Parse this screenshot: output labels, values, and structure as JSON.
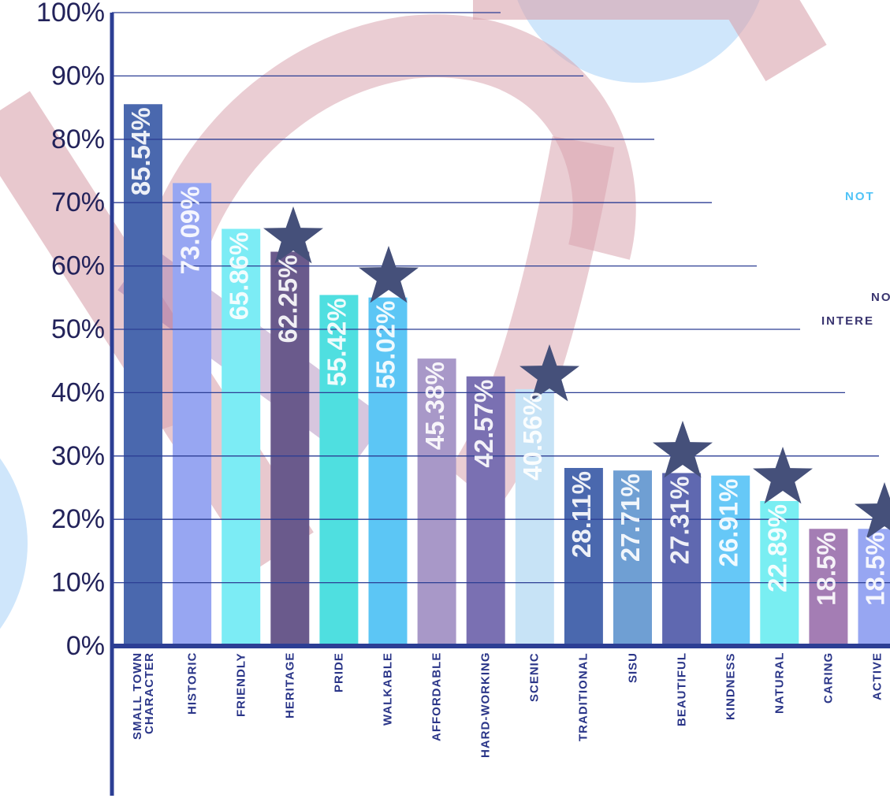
{
  "chart_data": {
    "type": "bar",
    "categories": [
      "SMALL TOWN CHARACTER",
      "HISTORIC",
      "FRIENDLY",
      "HERITAGE",
      "PRIDE",
      "WALKABLE",
      "AFFORDABLE",
      "HARD-WORKING",
      "SCENIC",
      "TRADITIONAL",
      "SISU",
      "BEAUTIFUL",
      "KINDNESS",
      "NATURAL",
      "CARING",
      "ACTIVE"
    ],
    "values": [
      85.54,
      73.09,
      65.86,
      62.25,
      55.42,
      55.02,
      45.38,
      42.57,
      40.56,
      28.11,
      27.71,
      27.31,
      26.91,
      22.89,
      18.5,
      18.5
    ],
    "value_labels": [
      "85.54%",
      "73.09%",
      "65.86%",
      "62.25%",
      "55.42%",
      "55.02%",
      "45.38%",
      "42.57%",
      "40.56%",
      "28.11%",
      "27.71%",
      "27.31%",
      "26.91%",
      "22.89%",
      "18.5%",
      "18.5%"
    ],
    "colors": [
      "#4a68ae",
      "#97a6f2",
      "#7cecf5",
      "#6a5a8c",
      "#4fdfe0",
      "#5cc6f5",
      "#a898c8",
      "#7a70b2",
      "#c7e3f6",
      "#4a68ae",
      "#6f9fd3",
      "#5f68b0",
      "#66c8f7",
      "#79eef2",
      "#a47db4",
      "#97a6f2"
    ],
    "ylim": [
      0,
      100
    ],
    "yticks": [
      {
        "value": 0,
        "label": "0%"
      },
      {
        "value": 10,
        "label": "10%"
      },
      {
        "value": 20,
        "label": "20%"
      },
      {
        "value": 30,
        "label": "30%"
      },
      {
        "value": 40,
        "label": "40%"
      },
      {
        "value": 50,
        "label": "50%"
      },
      {
        "value": 60,
        "label": "60%"
      },
      {
        "value": 70,
        "label": "70%"
      },
      {
        "value": 80,
        "label": "80%"
      },
      {
        "value": 90,
        "label": "90%"
      },
      {
        "value": 100,
        "label": "100%"
      }
    ],
    "grid": true,
    "annotations": [
      "NOT",
      "NO",
      "INTERE"
    ]
  }
}
